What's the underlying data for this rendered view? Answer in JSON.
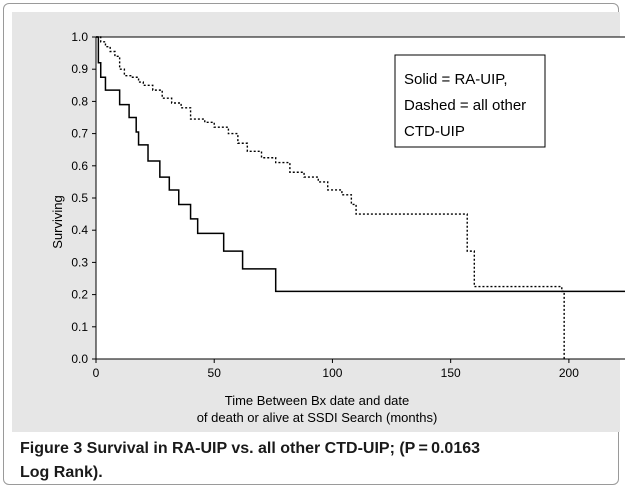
{
  "chart_data": {
    "type": "line",
    "title": "",
    "xlabel": [
      "Time Between Bx date and date",
      "of death or alive at SSDI Search (months)"
    ],
    "ylabel": "Surviving",
    "xlim": [
      0,
      225
    ],
    "ylim": [
      0,
      1.0
    ],
    "xticks": [
      0,
      50,
      100,
      150,
      200
    ],
    "yticks": [
      0.0,
      0.1,
      0.2,
      0.3,
      0.4,
      0.5,
      0.6,
      0.7,
      0.8,
      0.9,
      1.0
    ],
    "legend_placement": "top-right",
    "legend_lines": [
      "Solid = RA-UIP,",
      "Dashed = all other",
      "CTD-UIP"
    ],
    "series": [
      {
        "name": "RA-UIP",
        "style": "solid",
        "x": [
          0,
          1,
          2,
          4,
          10,
          14,
          17,
          18,
          22,
          27,
          31,
          35,
          40,
          43,
          45,
          54,
          62,
          76,
          225
        ],
        "y": [
          1.0,
          0.92,
          0.875,
          0.835,
          0.79,
          0.75,
          0.705,
          0.665,
          0.615,
          0.565,
          0.525,
          0.48,
          0.435,
          0.39,
          0.39,
          0.335,
          0.28,
          0.21,
          0.21
        ]
      },
      {
        "name": "all other CTD-UIP",
        "style": "dashed",
        "x": [
          0,
          2,
          4,
          6,
          8,
          10,
          12,
          15,
          18,
          20,
          24,
          28,
          32,
          36,
          40,
          46,
          50,
          56,
          60,
          64,
          70,
          76,
          82,
          88,
          94,
          98,
          104,
          108,
          110,
          130,
          157,
          160,
          196,
          197,
          198
        ],
        "y": [
          1.0,
          0.985,
          0.97,
          0.955,
          0.94,
          0.9,
          0.88,
          0.875,
          0.86,
          0.85,
          0.835,
          0.81,
          0.795,
          0.78,
          0.745,
          0.735,
          0.72,
          0.7,
          0.67,
          0.645,
          0.625,
          0.61,
          0.58,
          0.565,
          0.55,
          0.525,
          0.51,
          0.48,
          0.45,
          0.45,
          0.335,
          0.225,
          0.225,
          0.21,
          0.0
        ]
      }
    ]
  },
  "caption": {
    "bold": "Figure 3 Survival in RA-UIP vs. all other CTD-UIP; (P = 0.0163",
    "bold2": "Log Rank)."
  }
}
